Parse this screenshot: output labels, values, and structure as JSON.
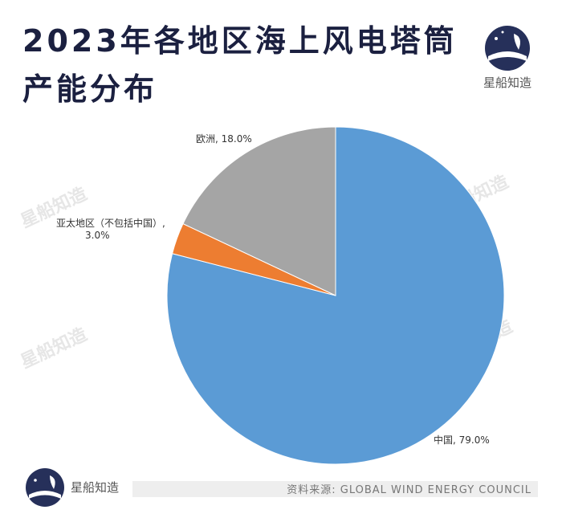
{
  "chart_data": {
    "type": "pie",
    "title_lines": [
      "2023年各地区海上风电塔筒",
      "产能分布"
    ],
    "brand": "星船知造",
    "watermark": "星船知造",
    "source": "资料来源: GLOBAL WIND ENERGY COUNCIL",
    "categories": [
      "中国",
      "亚太地区（不包括中国）",
      "欧洲"
    ],
    "values": [
      79.0,
      3.0,
      18.0
    ],
    "value_labels": [
      "中国, 79.0%",
      "亚太地区（不包括中国）,\n3.0%",
      "欧洲, 18.0%"
    ],
    "colors": [
      "#5b9bd5",
      "#ed7d31",
      "#a5a5a5"
    ]
  }
}
